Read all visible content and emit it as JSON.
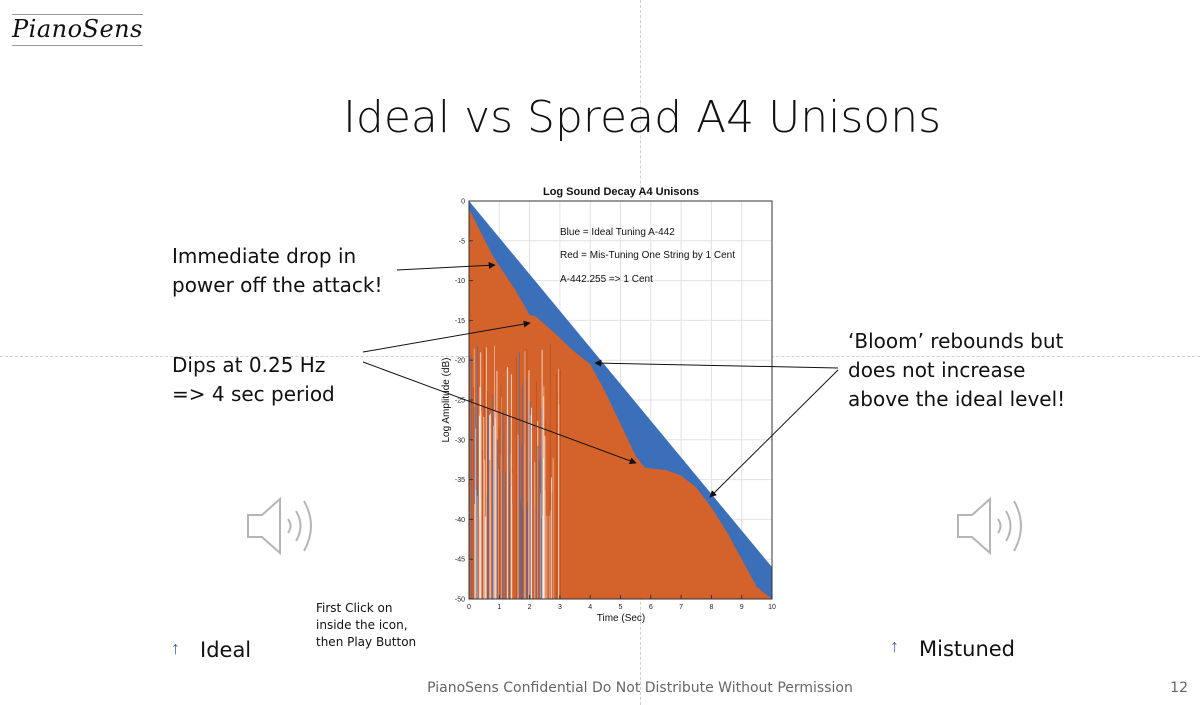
{
  "logo": "PianoSens",
  "slide_title": "Ideal vs Spread A4 Unisons",
  "callouts": {
    "drop": "Immediate drop in\npower off the attack!",
    "dips": "Dips at 0.25 Hz\n=> 4 sec period",
    "bloom": "‘Bloom’ rebounds but\ndoes not increase\nabove the ideal level!"
  },
  "note": "First Click on\ninside the icon,\nthen Play Button",
  "audio": {
    "left_label": "Ideal",
    "right_label": "Mistuned",
    "left_icon": "speaker-icon",
    "right_icon": "speaker-icon"
  },
  "footer": "PianoSens Confidential Do Not Distribute Without Permission",
  "page_number": "12",
  "chart_data": {
    "type": "area",
    "title": "Log Sound Decay A4 Unisons",
    "xlabel": "Time (Sec)",
    "ylabel": "Log Amplitude (dB)",
    "xlim": [
      0,
      10
    ],
    "ylim": [
      -50,
      0
    ],
    "x_ticks": [
      0,
      1,
      2,
      3,
      4,
      5,
      6,
      7,
      8,
      9,
      10
    ],
    "y_ticks": [
      0,
      -5,
      -10,
      -15,
      -20,
      -25,
      -30,
      -35,
      -40,
      -45,
      -50
    ],
    "grid": true,
    "annotations": [
      "Blue = Ideal Tuning A-442",
      "Red = Mis-Tuning One String by 1 Cent",
      "A-442.255 => 1 Cent"
    ],
    "series": [
      {
        "color": "#3b6fba",
        "x": [
          0,
          10
        ],
        "y": [
          0,
          -46
        ]
      },
      {
        "color": "#d4622b",
        "x": [
          0,
          0.8,
          1.5,
          2.0,
          2.2,
          2.8,
          3.5,
          4.0,
          4.5,
          5.0,
          5.5,
          5.8,
          6.0,
          6.5,
          7.0,
          7.5,
          8.0,
          8.5,
          9.0,
          9.5,
          10.0
        ],
        "y": [
          -1,
          -7,
          -11,
          -14.3,
          -14.5,
          -16.5,
          -19,
          -20.5,
          -24,
          -28,
          -32,
          -33.5,
          -33.6,
          -33.8,
          -34.5,
          -36,
          -38.5,
          -41.5,
          -45,
          -48.5,
          -50
        ]
      }
    ]
  },
  "colors": {
    "ideal": "#3b6fba",
    "mistuned": "#d4622b",
    "arrow_up": "#3d5fa8"
  }
}
